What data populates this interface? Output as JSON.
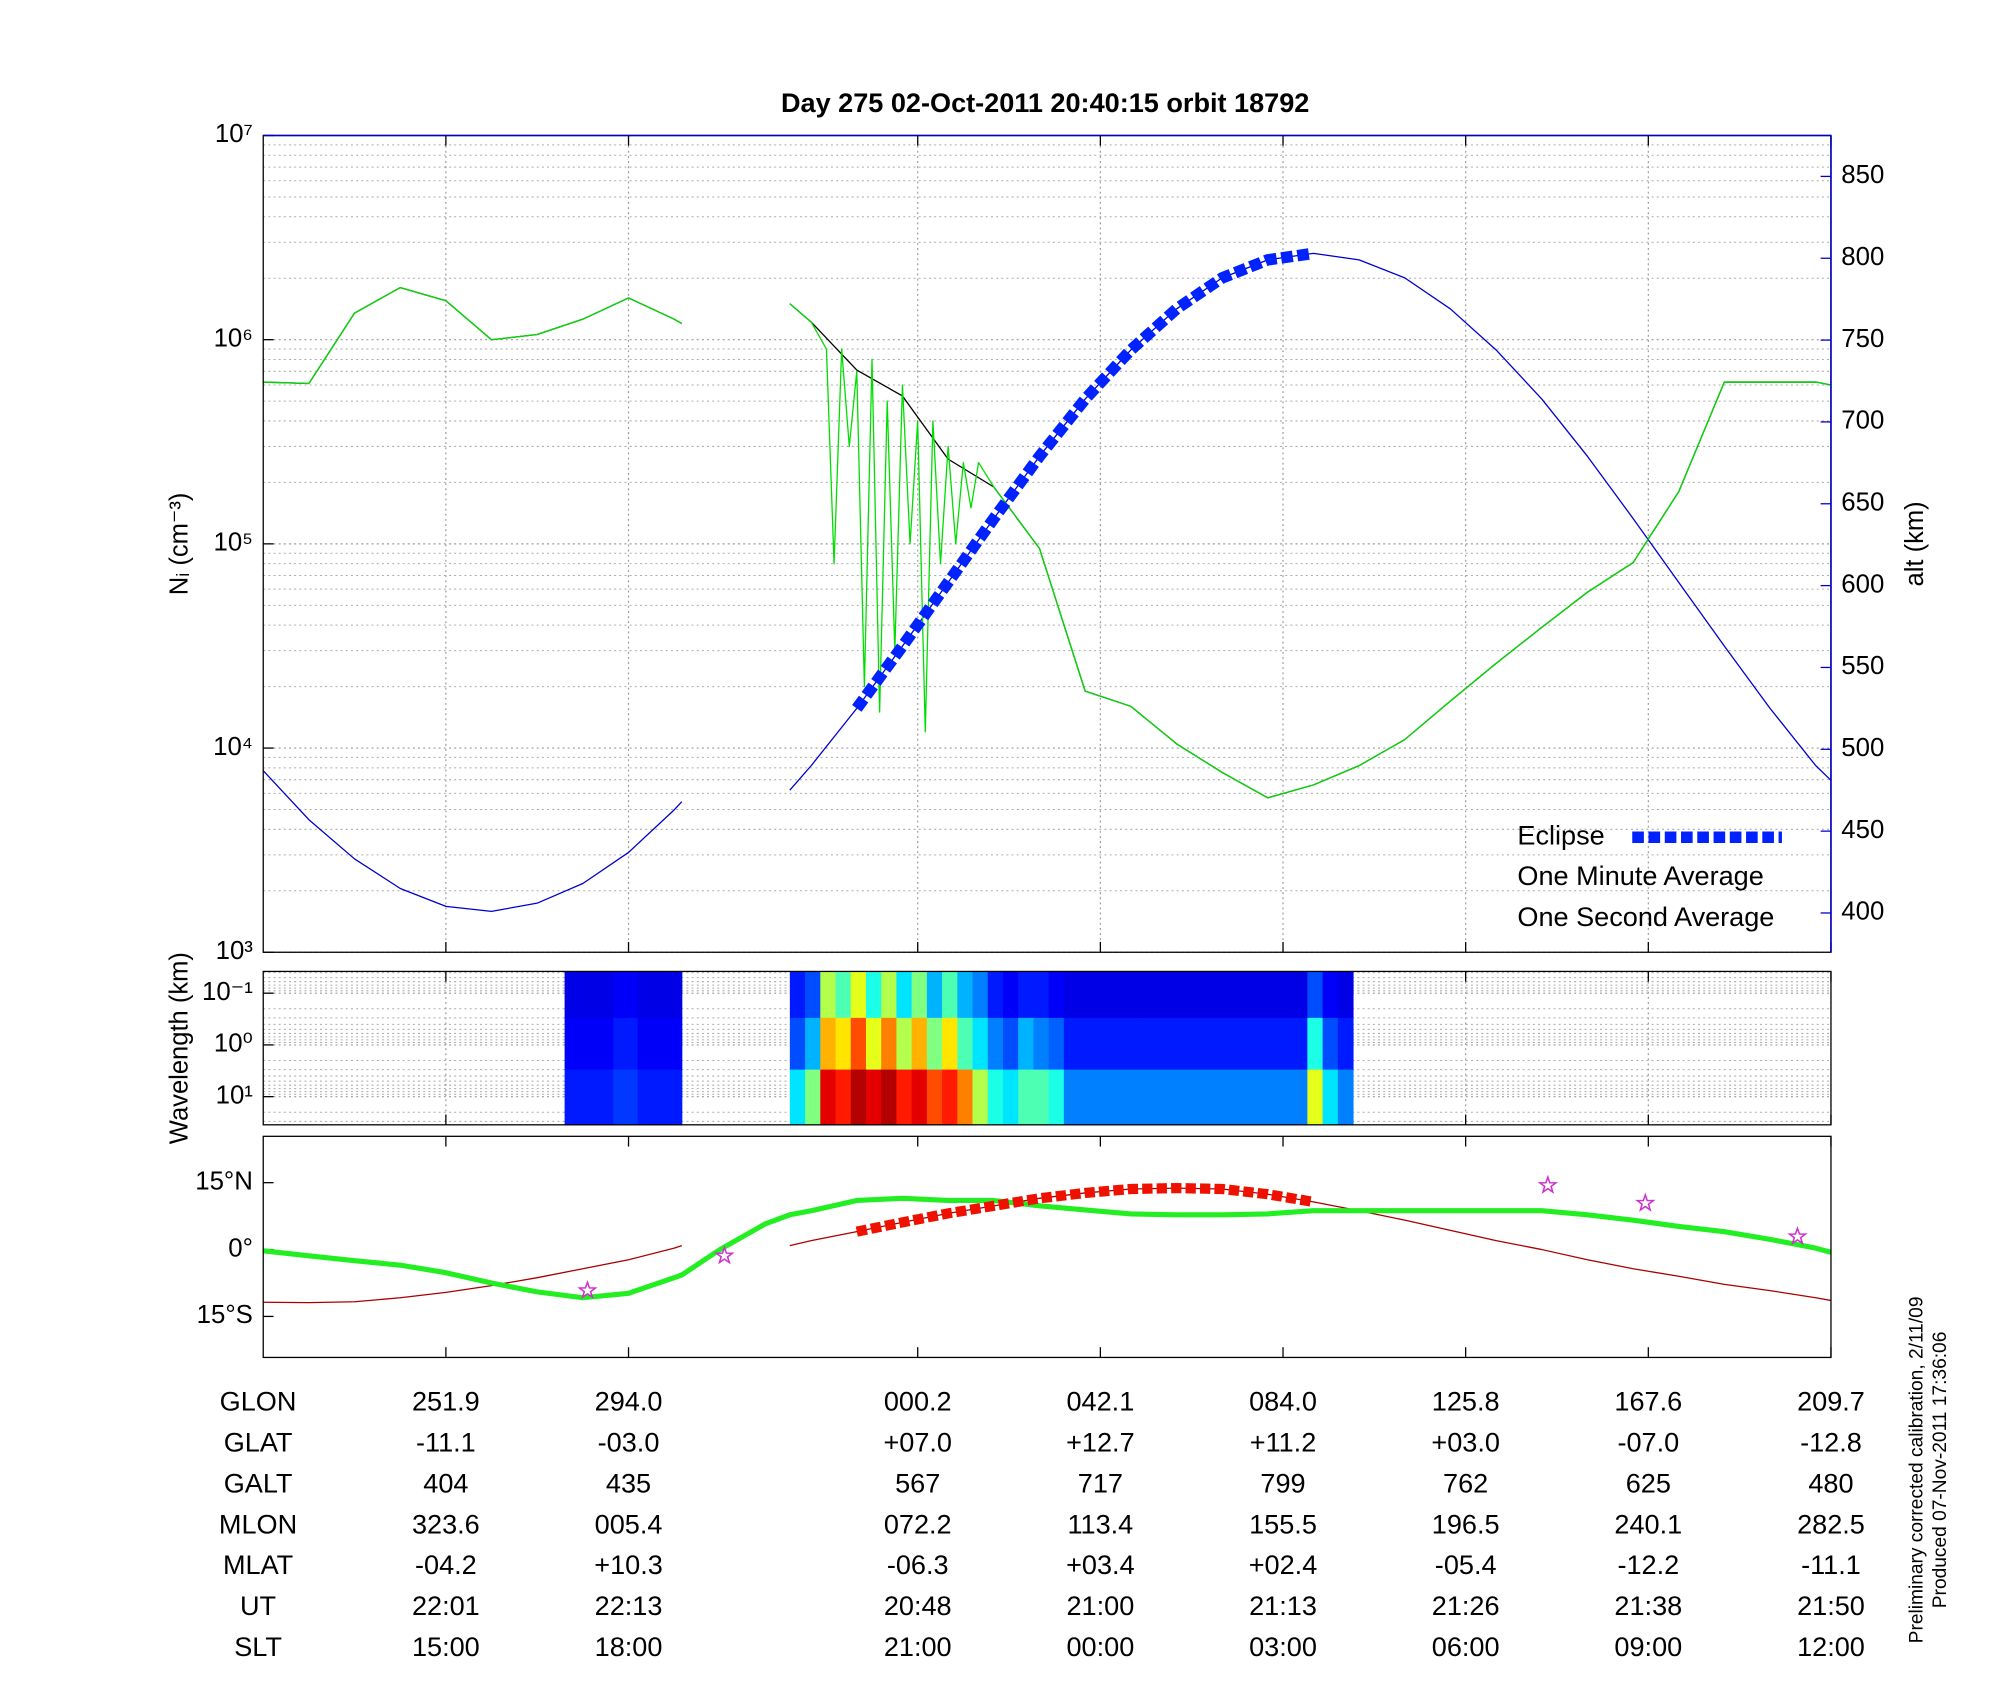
{
  "chart_data": [
    {
      "type": "line",
      "title": "Day 275  02-Oct-2011 20:40:15   orbit 18792",
      "ylabel": "Nᵢ (cm⁻³)",
      "y2label": "alt (km)",
      "y2color": "#0000cc",
      "yscale": "log",
      "grid": true,
      "minor_grid": true,
      "legend": "lower right",
      "xlim": [
        0,
        103
      ],
      "xticks": [
        12,
        24,
        43,
        55,
        67,
        79,
        91,
        103
      ],
      "ylim": [
        1000,
        10000000
      ],
      "yticks": [
        {
          "value": 1000,
          "label": "10³"
        },
        {
          "value": 10000,
          "label": "10⁴"
        },
        {
          "value": 100000,
          "label": "10⁵"
        },
        {
          "value": 1000000,
          "label": "10⁶"
        },
        {
          "value": 10000000,
          "label": "10⁷"
        }
      ],
      "y2lim": [
        376,
        875
      ],
      "y2ticks": [
        400,
        450,
        500,
        550,
        600,
        650,
        700,
        750,
        800,
        850
      ],
      "x": [
        0,
        3,
        6,
        9,
        12,
        15,
        18,
        21,
        24,
        27,
        27.5,
        30,
        33,
        34.6,
        36,
        39,
        42,
        45,
        48,
        51,
        54,
        57,
        60,
        63,
        66,
        69,
        72,
        75,
        78,
        81,
        84,
        87,
        90,
        93,
        96,
        99,
        102,
        103
      ],
      "series": [
        {
          "color": "#0000cc",
          "axis": "y2",
          "linewidth": 1,
          "values": [
            487,
            457,
            433,
            415,
            404,
            401,
            406,
            418,
            437,
            463,
            468,
            null,
            null,
            475,
            490,
            525,
            563,
            602,
            641,
            679,
            714,
            744,
            769,
            788,
            799,
            803,
            799,
            788,
            769,
            744,
            714,
            679,
            641,
            602,
            563,
            525,
            490,
            481
          ]
        },
        {
          "name": "Eclipse",
          "color": "#0022ff",
          "axis": "y2",
          "marker": "square",
          "linewidth": 9,
          "values": [
            null,
            null,
            null,
            null,
            null,
            null,
            null,
            null,
            null,
            null,
            null,
            null,
            null,
            null,
            null,
            525,
            563,
            602,
            641,
            679,
            714,
            744,
            769,
            788,
            799,
            803,
            null,
            null,
            null,
            null,
            null,
            null,
            null,
            null,
            null,
            null,
            null,
            null
          ]
        },
        {
          "name": "One Minute Average",
          "color": "#000000",
          "linewidth": 1,
          "values": [
            620000,
            610000,
            1350000,
            1800000,
            1550000,
            1000000,
            1060000,
            1260000,
            1600000,
            1260000,
            1200000,
            null,
            null,
            1500000,
            1220000,
            710000,
            530000,
            260000,
            190000,
            95000,
            19000,
            16000,
            10500,
            7600,
            5700,
            6600,
            8200,
            11000,
            17000,
            26000,
            39000,
            58000,
            81000,
            180000,
            620000,
            620000,
            620000,
            600000
          ]
        },
        {
          "name": "One Second Average",
          "color": "#00dd00",
          "linewidth": 1,
          "x": [
            0,
            3,
            6,
            9,
            12,
            15,
            18,
            21,
            24,
            27,
            27.5,
            30,
            34.6,
            36,
            37,
            37.5,
            38,
            38.5,
            39,
            39.5,
            40,
            40.5,
            41,
            41.5,
            42,
            42.5,
            43,
            43.5,
            44,
            44.5,
            45,
            45.5,
            46,
            46.5,
            47,
            48,
            51,
            54,
            57,
            60,
            63,
            66,
            69,
            72,
            75,
            78,
            81,
            84,
            87,
            90,
            93,
            96,
            99,
            102,
            103
          ],
          "values": [
            620000,
            610000,
            1350000,
            1800000,
            1550000,
            1000000,
            1060000,
            1260000,
            1600000,
            1260000,
            1200000,
            null,
            1500000,
            1220000,
            900000,
            80000,
            900000,
            300000,
            700000,
            20000,
            800000,
            15000,
            500000,
            30000,
            600000,
            100000,
            400000,
            12000,
            400000,
            80000,
            300000,
            100000,
            250000,
            150000,
            250000,
            190000,
            95000,
            19000,
            16000,
            10500,
            7600,
            5700,
            6600,
            8200,
            11000,
            17000,
            26000,
            39000,
            58000,
            81000,
            180000,
            620000,
            620000,
            620000,
            600000
          ]
        }
      ]
    },
    {
      "type": "heatmap",
      "ylabel": "Wavelength (km)",
      "yscale": "log",
      "yinvert": true,
      "grid": true,
      "minor_grid": true,
      "xlim": [
        0,
        103
      ],
      "xticks": [
        12,
        24,
        43,
        55,
        67,
        79,
        91,
        103
      ],
      "ylim": [
        0.038,
        35
      ],
      "yticks": [
        {
          "value": 0.1,
          "label": "10⁻¹"
        },
        {
          "value": 1,
          "label": "10⁰"
        },
        {
          "value": 10,
          "label": "10¹"
        }
      ],
      "zlim": [
        0,
        1
      ],
      "xbins": [
        19.8,
        21.4,
        23,
        24.6,
        26.1,
        27.5,
        34.6,
        35.6,
        36.6,
        37.6,
        38.6,
        39.6,
        40.6,
        41.6,
        42.6,
        43.6,
        44.6,
        45.6,
        46.6,
        47.6,
        48.6,
        49.6,
        50.6,
        51.6,
        52.6,
        53.6,
        54.6,
        55.6,
        56.6,
        57.6,
        58.6,
        59.6,
        60.6,
        61.6,
        62.6,
        63.6,
        64.6,
        65.6,
        66.6,
        67.6,
        68.6,
        69.6,
        70.6,
        71.6
      ],
      "ybins": [
        0.038,
        0.3,
        3,
        35
      ],
      "values": [
        [
          0.1,
          0.1,
          0.12,
          0.1,
          0.1,
          null,
          0.15,
          0.2,
          0.55,
          0.45,
          0.6,
          0.4,
          0.55,
          0.35,
          0.5,
          0.3,
          0.45,
          0.3,
          0.25,
          0.15,
          0.12,
          0.15,
          0.15,
          0.12,
          0.1,
          0.1,
          0.1,
          0.1,
          0.1,
          0.1,
          0.1,
          0.1,
          0.1,
          0.1,
          0.1,
          0.1,
          0.1,
          0.1,
          0.1,
          0.1,
          0.2,
          0.12,
          0.1
        ],
        [
          0.12,
          0.12,
          0.15,
          0.12,
          0.12,
          null,
          0.2,
          0.3,
          0.7,
          0.65,
          0.8,
          0.6,
          0.75,
          0.55,
          0.7,
          0.5,
          0.65,
          0.45,
          0.35,
          0.25,
          0.2,
          0.3,
          0.25,
          0.22,
          0.15,
          0.15,
          0.15,
          0.15,
          0.15,
          0.15,
          0.15,
          0.15,
          0.15,
          0.15,
          0.15,
          0.15,
          0.15,
          0.15,
          0.15,
          0.15,
          0.4,
          0.2,
          0.15
        ],
        [
          0.15,
          0.15,
          0.18,
          0.15,
          0.15,
          null,
          0.35,
          0.5,
          0.9,
          0.85,
          0.95,
          0.9,
          0.95,
          0.85,
          0.9,
          0.8,
          0.85,
          0.75,
          0.55,
          0.4,
          0.35,
          0.45,
          0.45,
          0.4,
          0.25,
          0.25,
          0.25,
          0.25,
          0.25,
          0.25,
          0.25,
          0.25,
          0.25,
          0.25,
          0.25,
          0.25,
          0.25,
          0.25,
          0.25,
          0.25,
          0.6,
          0.35,
          0.25
        ]
      ]
    },
    {
      "type": "map",
      "grid": false,
      "xlim": [
        0,
        103
      ],
      "xticks": [
        12,
        24,
        43,
        55,
        67,
        79,
        91,
        103
      ],
      "ylim": [
        -24.2,
        25.4
      ],
      "yticks": [
        {
          "value": 15,
          "label": "15°N"
        },
        {
          "value": 0,
          "label": "0°"
        },
        {
          "value": -15,
          "label": "15°S"
        }
      ],
      "x": [
        0,
        3,
        6,
        9,
        12,
        15,
        18,
        21,
        24,
        27,
        27.5,
        30,
        33,
        34.6,
        36,
        39,
        42,
        45,
        48,
        51,
        54,
        57,
        60,
        63,
        66,
        69,
        72,
        75,
        78,
        81,
        84,
        87,
        90,
        93,
        96,
        99,
        102,
        103
      ],
      "series": [
        {
          "color": "#aa0000",
          "linewidth": 1,
          "values": [
            -11.8,
            -11.9,
            -11.7,
            -10.8,
            -9.6,
            -8.1,
            -6.3,
            -4.3,
            -2.3,
            0.3,
            0.9,
            null,
            null,
            0.9,
            2.0,
            4.0,
            6.1,
            8.1,
            9.8,
            11.5,
            12.7,
            13.6,
            13.8,
            13.6,
            12.4,
            10.7,
            8.7,
            6.6,
            4.3,
            2.0,
            0,
            -2.3,
            -4.3,
            -6,
            -7.8,
            -9.2,
            -10.8,
            -11.4
          ]
        },
        {
          "color": "#22ee22",
          "linewidth": 4,
          "values": [
            -0.3,
            -1.4,
            -2.5,
            -3.5,
            -5.2,
            -7.5,
            -9.5,
            -10.8,
            -9.8,
            -6.3,
            -5.7,
            0,
            5.8,
            7.8,
            8.7,
            11,
            11.5,
            11,
            11,
            9.8,
            8.9,
            8,
            7.8,
            7.8,
            8,
            8.7,
            8.7,
            8.7,
            8.7,
            8.7,
            8.7,
            7.8,
            6.6,
            5.2,
            4,
            2.3,
            0.3,
            -0.6
          ]
        },
        {
          "color": "#ee1100",
          "marker": "square",
          "linewidth": 8,
          "values": [
            null,
            null,
            null,
            null,
            null,
            null,
            null,
            null,
            null,
            null,
            null,
            null,
            null,
            null,
            null,
            4.0,
            6.1,
            8.1,
            9.8,
            11.5,
            12.7,
            13.6,
            13.8,
            13.6,
            12.4,
            10.7,
            null,
            null,
            null,
            null,
            null,
            null,
            null,
            null,
            null,
            null,
            null,
            null
          ]
        },
        {
          "color": "#cc33cc",
          "marker": "star",
          "x": [
            21.3,
            30.3,
            84.4,
            90.8,
            100.8
          ],
          "values": [
            -9.2,
            -1.4,
            14.4,
            10.4,
            2.9
          ]
        }
      ]
    }
  ],
  "table": {
    "rows": [
      [
        "GLON",
        "251.9",
        "294.0",
        "000.2",
        "042.1",
        "084.0",
        "125.8",
        "167.6",
        "209.7"
      ],
      [
        "GLAT",
        "-11.1",
        "-03.0",
        "+07.0",
        "+12.7",
        "+11.2",
        "+03.0",
        "-07.0",
        "-12.8"
      ],
      [
        "GALT",
        "404",
        "435",
        "567",
        "717",
        "799",
        "762",
        "625",
        "480"
      ],
      [
        "MLON",
        "323.6",
        "005.4",
        "072.2",
        "113.4",
        "155.5",
        "196.5",
        "240.1",
        "282.5"
      ],
      [
        "MLAT",
        "-04.2",
        "+10.3",
        "-06.3",
        "+03.4",
        "+02.4",
        "-05.4",
        "-12.2",
        "-11.1"
      ],
      [
        "UT",
        "22:01",
        "22:13",
        "20:48",
        "21:00",
        "21:13",
        "21:26",
        "21:38",
        "21:50"
      ],
      [
        "SLT",
        "15:00",
        "18:00",
        "21:00",
        "00:00",
        "03:00",
        "06:00",
        "09:00",
        "12:00"
      ]
    ]
  },
  "notes": [
    "Preliminary corrected calibration, 2/11/09",
    "Produced 07-Nov-2011 17:36:06"
  ]
}
